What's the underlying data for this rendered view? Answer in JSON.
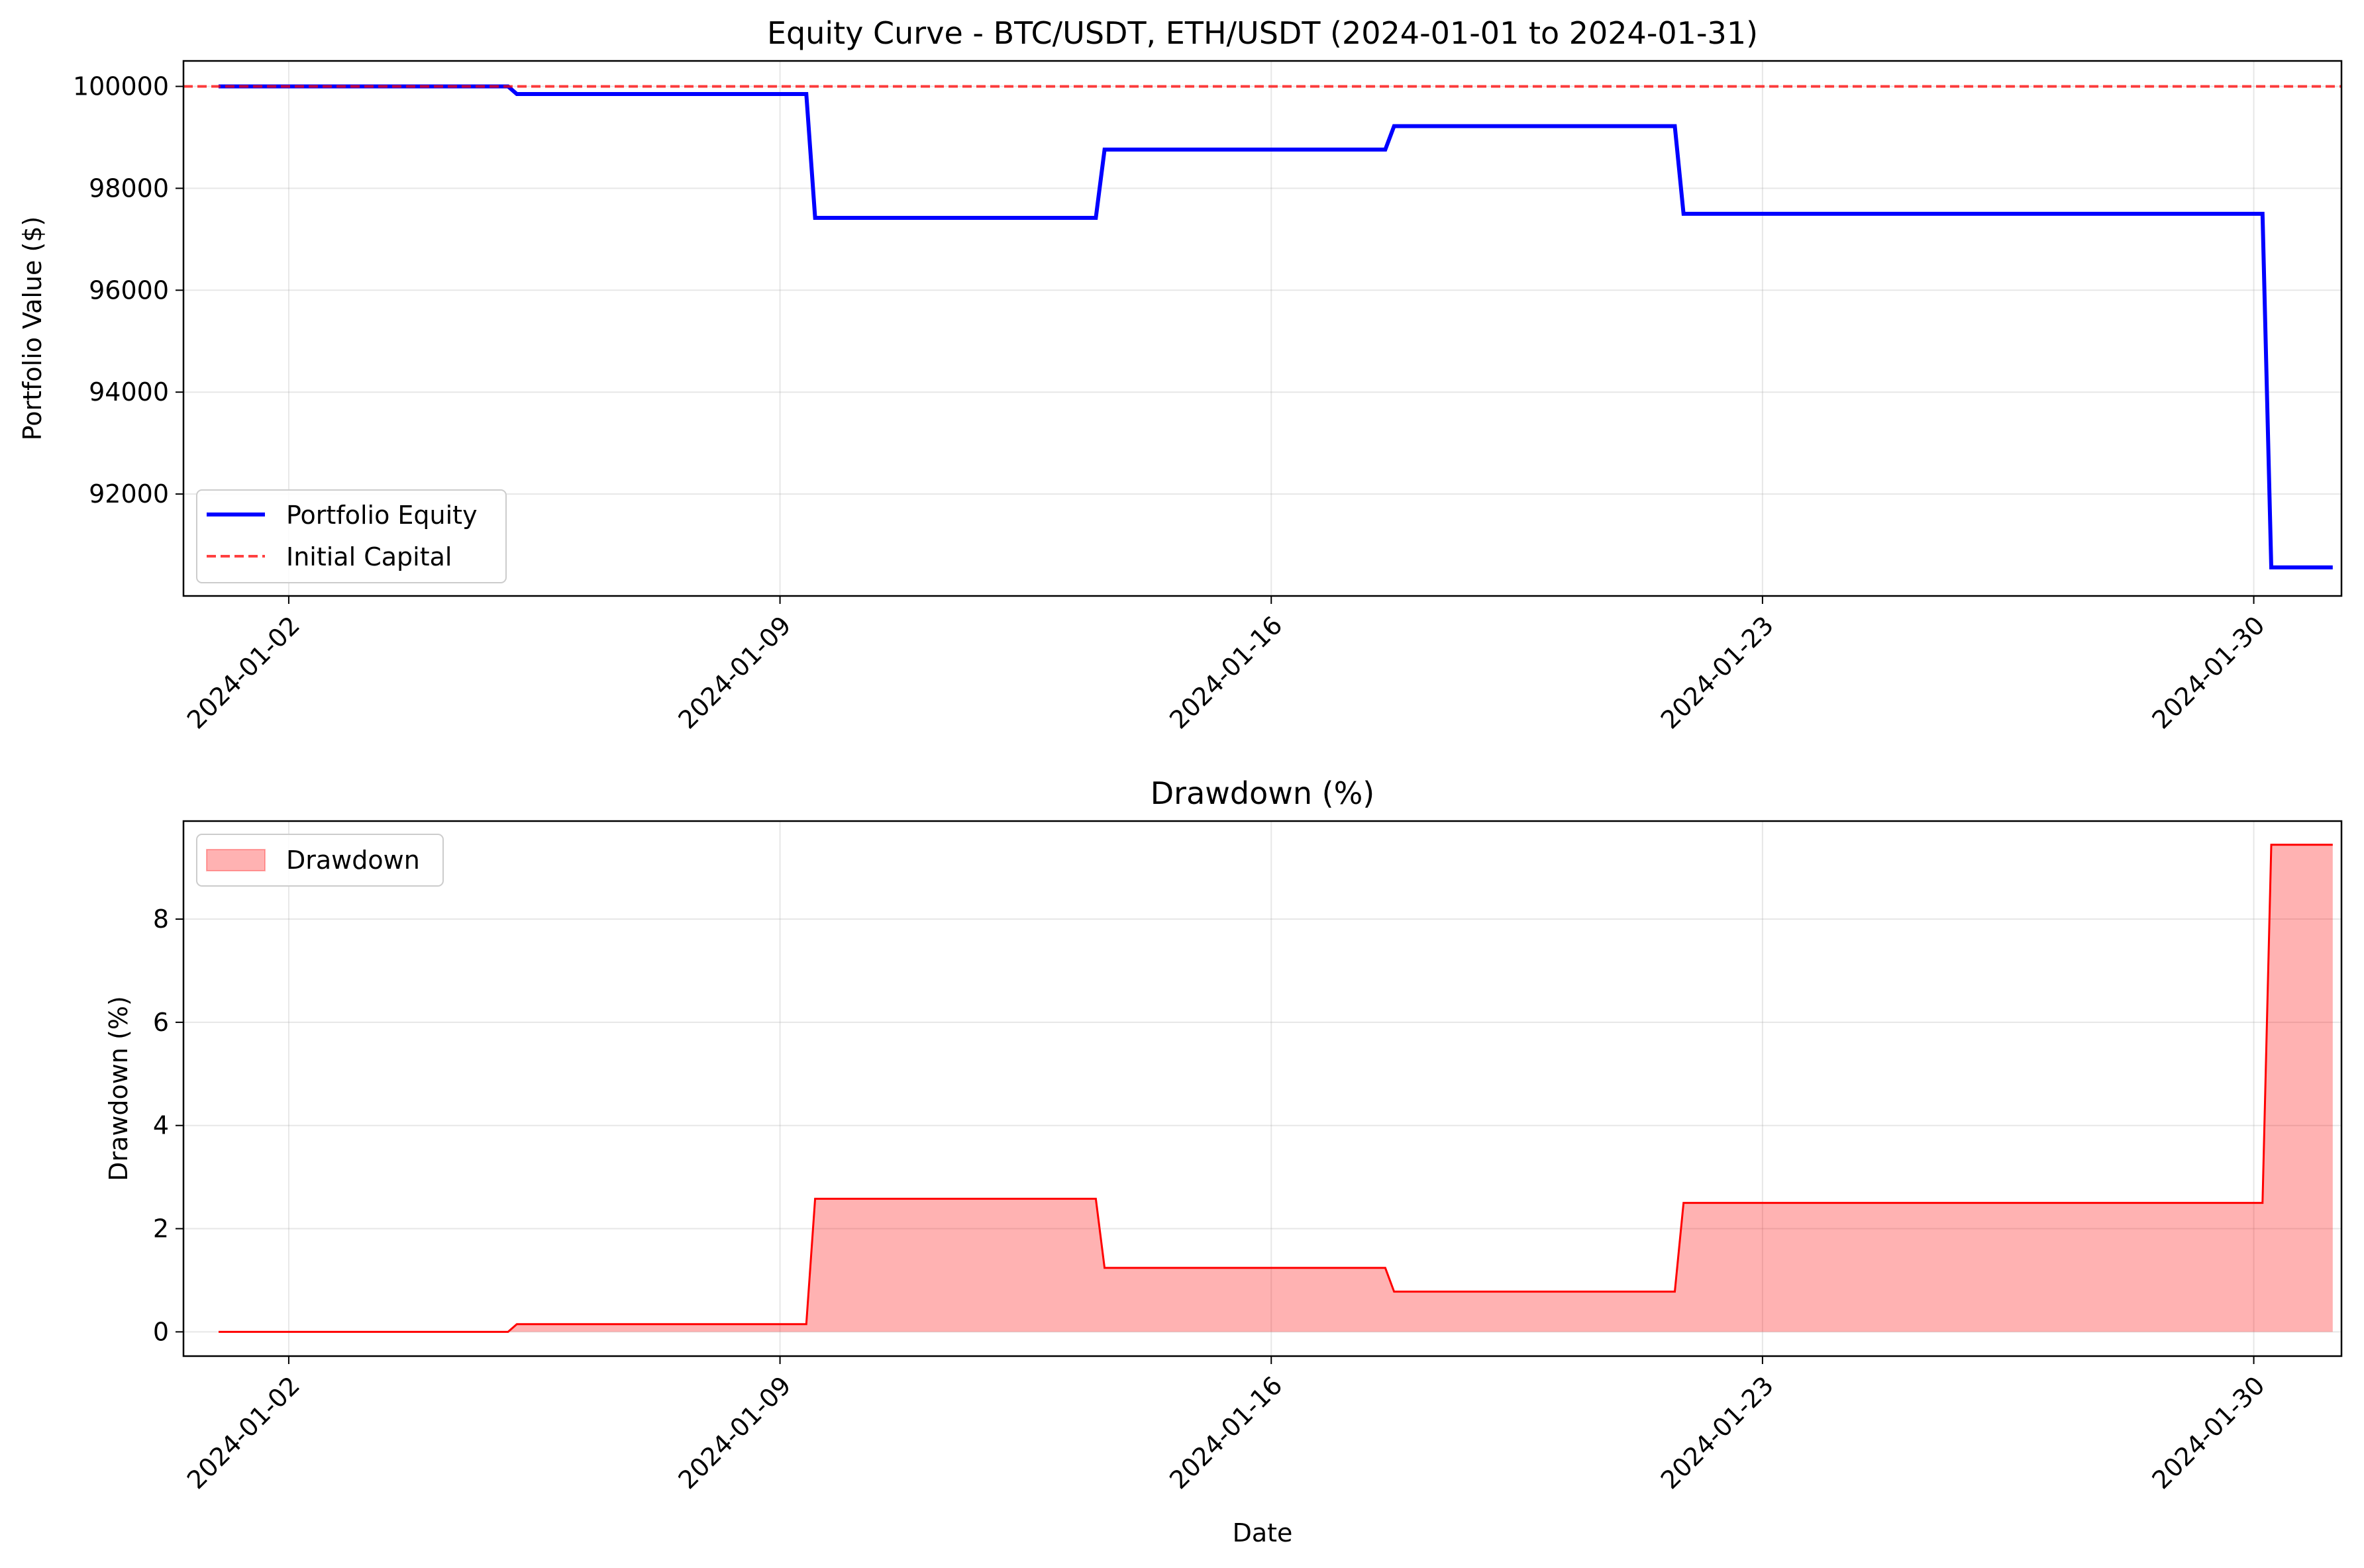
{
  "chart_data": [
    {
      "type": "line",
      "title": "Equity Curve - BTC/USDT, ETH/USDT (2024-01-01 to 2024-01-31)",
      "xlabel": "",
      "ylabel": "Portfolio Value ($)",
      "xlim": [
        "2024-01-00 12:00",
        "2024-01-31 06:00"
      ],
      "ylim": [
        90000,
        100500
      ],
      "x_ticks": [
        "2024-01-02",
        "2024-01-09",
        "2024-01-16",
        "2024-01-23",
        "2024-01-30"
      ],
      "y_ticks": [
        92000,
        94000,
        96000,
        98000,
        100000
      ],
      "grid": true,
      "legend": "lower-left",
      "series": [
        {
          "name": "Portfolio Equity",
          "style": "solid",
          "color": "#0000ff",
          "points": [
            [
              "2024-01-01 00:00",
              100000
            ],
            [
              "2024-01-05 03:00",
              100000
            ],
            [
              "2024-01-05 06:00",
              99850
            ],
            [
              "2024-01-09 09:00",
              99850
            ],
            [
              "2024-01-09 12:00",
              97420
            ],
            [
              "2024-01-13 12:00",
              97420
            ],
            [
              "2024-01-13 15:00",
              98760
            ],
            [
              "2024-01-17 15:00",
              98760
            ],
            [
              "2024-01-17 18:00",
              99220
            ],
            [
              "2024-01-21 18:00",
              99220
            ],
            [
              "2024-01-21 21:00",
              97500
            ],
            [
              "2024-01-30 03:00",
              97500
            ],
            [
              "2024-01-30 06:00",
              90560
            ],
            [
              "2024-01-31 03:00",
              90560
            ]
          ]
        },
        {
          "name": "Initial Capital",
          "style": "dashed",
          "color": "#ff0000",
          "y": 100000
        }
      ]
    },
    {
      "type": "area",
      "title": "Drawdown (%)",
      "xlabel": "Date",
      "ylabel": "Drawdown (%)",
      "xlim": [
        "2024-01-00 12:00",
        "2024-01-31 06:00"
      ],
      "ylim": [
        -0.47,
        9.9
      ],
      "x_ticks": [
        "2024-01-02",
        "2024-01-09",
        "2024-01-16",
        "2024-01-23",
        "2024-01-30"
      ],
      "y_ticks": [
        0,
        2,
        4,
        6,
        8
      ],
      "grid": true,
      "legend": "top-left",
      "series": [
        {
          "name": "Drawdown",
          "color": "#ff0000",
          "fill": "#ff0000",
          "points": [
            [
              "2024-01-01 00:00",
              0
            ],
            [
              "2024-01-05 03:00",
              0
            ],
            [
              "2024-01-05 06:00",
              0.15
            ],
            [
              "2024-01-09 09:00",
              0.15
            ],
            [
              "2024-01-09 12:00",
              2.58
            ],
            [
              "2024-01-13 12:00",
              2.58
            ],
            [
              "2024-01-13 15:00",
              1.24
            ],
            [
              "2024-01-17 15:00",
              1.24
            ],
            [
              "2024-01-17 18:00",
              0.78
            ],
            [
              "2024-01-21 18:00",
              0.78
            ],
            [
              "2024-01-21 21:00",
              2.5
            ],
            [
              "2024-01-30 03:00",
              2.5
            ],
            [
              "2024-01-30 06:00",
              9.44
            ],
            [
              "2024-01-31 03:00",
              9.44
            ]
          ]
        }
      ]
    }
  ]
}
